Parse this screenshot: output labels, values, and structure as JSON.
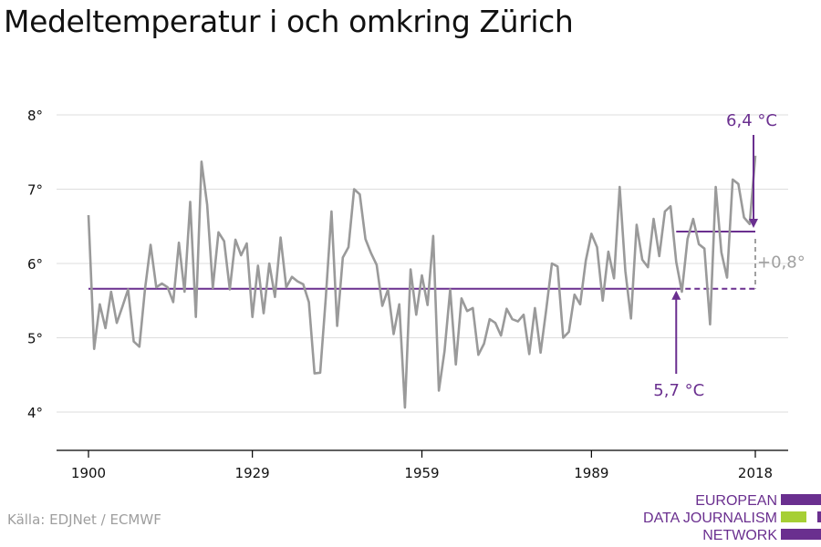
{
  "header": {
    "title": "Medeltemperatur i och omkring Zürich"
  },
  "footer": {
    "source": "Källa: EDJNet / ECMWF"
  },
  "logo": {
    "line1": "EUROPEAN",
    "line2": "DATA JOURNALISM",
    "line3": "NETWORK",
    "purple": "#6a2f8f",
    "green": "#a6cf35"
  },
  "colors": {
    "series": "#9a9a9a",
    "purple": "#6a2f8f",
    "grid": "#dddddd",
    "diff": "#a0a0a0"
  },
  "chart_data": {
    "type": "line",
    "title": "Medeltemperatur i och omkring Zürich",
    "xlabel": "",
    "ylabel": "",
    "xlim": [
      1900,
      2018
    ],
    "ylim": [
      3.5,
      8.2
    ],
    "x_ticks": [
      1900,
      1929,
      1959,
      1989,
      2018
    ],
    "x_tick_labels": [
      "1900",
      "1929",
      "1959",
      "1989",
      "2018"
    ],
    "y_ticks": [
      4,
      5,
      6,
      7,
      8
    ],
    "y_tick_labels": [
      "4°",
      "5°",
      "6°",
      "7°",
      "8°"
    ],
    "grid": true,
    "series": [
      {
        "x": [
          1900,
          1901,
          1902,
          1903,
          1904,
          1905,
          1906,
          1907,
          1908,
          1909,
          1910,
          1911,
          1912,
          1913,
          1914,
          1915,
          1916,
          1917,
          1918,
          1919,
          1920,
          1921,
          1922,
          1923,
          1924,
          1925,
          1926,
          1927,
          1928,
          1929,
          1930,
          1931,
          1932,
          1933,
          1934,
          1935,
          1936,
          1937,
          1938,
          1939,
          1940,
          1941,
          1942,
          1943,
          1944,
          1945,
          1946,
          1947,
          1948,
          1949,
          1950,
          1951,
          1952,
          1953,
          1954,
          1955,
          1956,
          1957,
          1958,
          1959,
          1960,
          1961,
          1962,
          1963,
          1964,
          1965,
          1966,
          1967,
          1968,
          1969,
          1970,
          1971,
          1972,
          1973,
          1974,
          1975,
          1976,
          1977,
          1978,
          1979,
          1980,
          1981,
          1982,
          1983,
          1984,
          1985,
          1986,
          1987,
          1988,
          1989,
          1990,
          1991,
          1992,
          1993,
          1994,
          1995,
          1996,
          1997,
          1998,
          1999,
          2000,
          2001,
          2002,
          2003,
          2004,
          2005,
          2006,
          2007,
          2008,
          2009,
          2010,
          2011,
          2012,
          2013,
          2014,
          2015,
          2016,
          2017,
          2018
        ],
        "values": [
          6.65,
          4.85,
          5.45,
          5.13,
          5.62,
          5.2,
          5.42,
          5.65,
          4.95,
          4.88,
          5.65,
          6.25,
          5.68,
          5.73,
          5.68,
          5.48,
          6.28,
          5.62,
          6.83,
          5.28,
          7.37,
          6.79,
          5.67,
          6.42,
          6.3,
          5.65,
          6.32,
          6.11,
          6.27,
          5.28,
          5.97,
          5.33,
          6.0,
          5.55,
          6.35,
          5.68,
          5.82,
          5.76,
          5.72,
          5.48,
          4.52,
          4.53,
          5.55,
          6.7,
          5.16,
          6.08,
          6.22,
          7.0,
          6.93,
          6.33,
          6.14,
          5.98,
          5.43,
          5.65,
          5.05,
          5.45,
          4.06,
          5.92,
          5.31,
          5.84,
          5.44,
          6.37,
          4.29,
          4.82,
          5.65,
          4.64,
          5.53,
          5.36,
          5.4,
          4.77,
          4.92,
          5.25,
          5.2,
          5.03,
          5.39,
          5.25,
          5.22,
          5.31,
          4.78,
          5.4,
          4.8,
          5.38,
          6.0,
          5.96,
          5.0,
          5.08,
          5.58,
          5.45,
          6.04,
          6.4,
          6.22,
          5.5,
          6.16,
          5.8,
          7.03,
          5.9,
          5.26,
          6.52,
          6.05,
          5.95,
          6.6,
          6.1,
          6.7,
          6.77,
          6.02,
          5.62,
          6.33,
          6.6,
          6.26,
          6.2,
          5.18,
          7.03,
          6.15,
          5.81,
          7.13,
          7.07,
          6.62,
          6.53,
          7.45
        ]
      }
    ],
    "annotations": [
      {
        "label": "5,7 °C",
        "y": 5.66,
        "x_from": 1900,
        "x_to": 2004,
        "dashed_to": 2018,
        "arrow_x": 2004
      },
      {
        "label": "6,4 °C",
        "y": 6.43,
        "x_from": 2004,
        "x_to": 2018,
        "arrow_x": 2018
      },
      {
        "label": "+0,8°",
        "y_from": 5.66,
        "y_to": 6.43,
        "x": 2018
      }
    ]
  }
}
